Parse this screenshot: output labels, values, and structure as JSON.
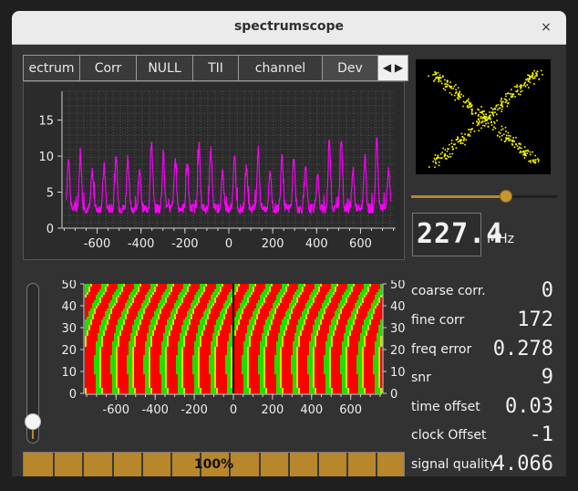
{
  "window": {
    "title": "spectrumscope",
    "close_symbol": "×"
  },
  "tabs": [
    {
      "label": "ectrum",
      "active": false
    },
    {
      "label": "Corr",
      "active": false
    },
    {
      "label": "NULL",
      "active": false
    },
    {
      "label": "TII",
      "active": false
    },
    {
      "label": "channel",
      "active": false
    },
    {
      "label": "Dev",
      "active": true
    }
  ],
  "tab_arrows": {
    "left": "◀",
    "right": "▶"
  },
  "chart_data": [
    {
      "type": "line",
      "series": [
        {
          "values": "periodic magenta peaks, baseline about 2-3, peaks up to about 12"
        }
      ],
      "x_ticks": [
        "-600",
        "-400",
        "-200",
        "0",
        "200",
        "400",
        "600"
      ],
      "y_ticks": [
        "0",
        "5",
        "10",
        "15"
      ],
      "xlim": [
        -760,
        760
      ],
      "ylim": [
        0,
        19
      ],
      "grid": true,
      "color": "#ff00ff"
    },
    {
      "type": "heatmap",
      "x_ticks": [
        "-600",
        "-400",
        "-200",
        "0",
        "200",
        "400",
        "600"
      ],
      "y_ticks_left": [
        "0",
        "10",
        "20",
        "30",
        "40",
        "50"
      ],
      "y_ticks_right": [
        "0",
        "10",
        "20",
        "30",
        "40",
        "50"
      ],
      "xlim": [
        -760,
        760
      ],
      "ylim": [
        0,
        50
      ],
      "colors": [
        "#ff0000",
        "#22dd00",
        "#dddd00"
      ],
      "marker_line_x": 0
    }
  ],
  "scope": {
    "point_color": "#ffff00"
  },
  "frequency": {
    "value": "227.4",
    "unit": "MHz",
    "slider_level": 0.65
  },
  "stats": [
    {
      "label": "coarse corr.",
      "value": "0"
    },
    {
      "label": "fine corr",
      "value": "172"
    },
    {
      "label": "freq error",
      "value": "0.278"
    },
    {
      "label": "snr",
      "value": "9"
    },
    {
      "label": "time offset",
      "value": "0.03"
    },
    {
      "label": "clock Offset",
      "value": "-1"
    },
    {
      "label": "signal quality",
      "value": "4.066"
    }
  ],
  "waterfall_slider": {
    "level": 0.05
  },
  "progress": {
    "text": "100%",
    "value": 1.0
  },
  "colors": {
    "accent": "#b8862b",
    "spectrum": "#ff00ff"
  }
}
